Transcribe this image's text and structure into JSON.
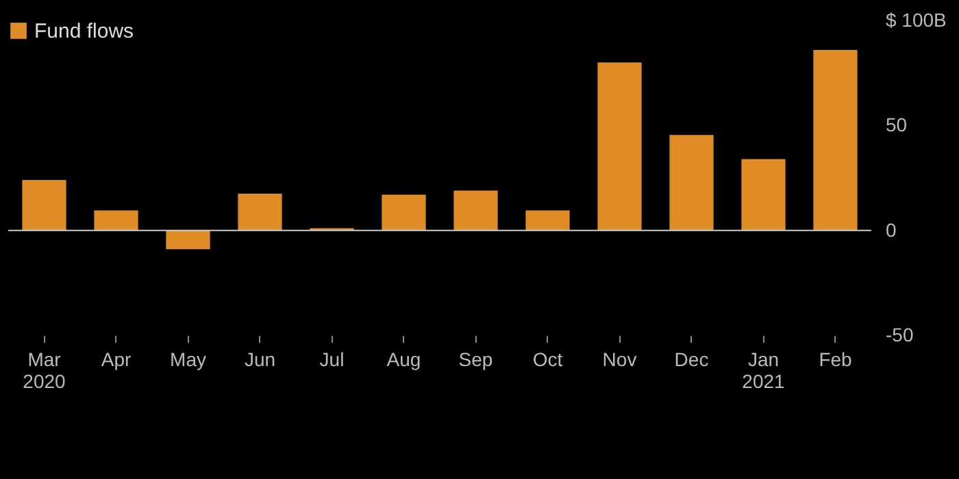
{
  "chart_data": {
    "type": "bar",
    "categories": [
      "Mar\n2020",
      "Apr",
      "May",
      "Jun",
      "Jul",
      "Aug",
      "Sep",
      "Oct",
      "Nov",
      "Dec",
      "Jan\n2021",
      "Feb"
    ],
    "series": [
      {
        "name": "Fund flows",
        "color": "#e08c26",
        "values": [
          24,
          9.5,
          -9,
          17.5,
          1,
          17,
          19,
          9.5,
          80,
          45.5,
          34,
          86
        ]
      }
    ],
    "ylim": [
      -50,
      100
    ],
    "yticks": [
      {
        "value": 100,
        "label": "$ 100B"
      },
      50,
      0,
      -50
    ],
    "ref_lines": [
      {
        "axis": "y",
        "value": 0,
        "color": "#cccccc"
      }
    ],
    "legend": "top left",
    "grid": false
  }
}
